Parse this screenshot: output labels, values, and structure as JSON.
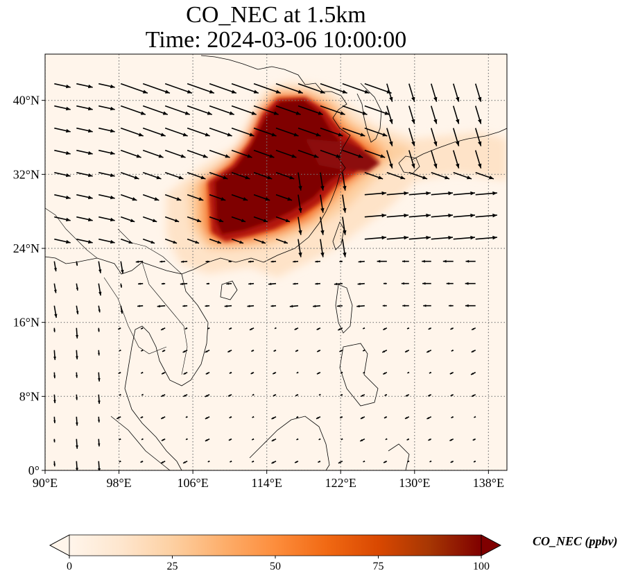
{
  "title": {
    "line1": "CO_NEC at 1.5km",
    "line2": "Time: 2024-03-06 10:00:00"
  },
  "map": {
    "lon_range": [
      90,
      140
    ],
    "lat_range": [
      0,
      45
    ],
    "lon_ticks": [
      {
        "value": 90,
        "label": "90°E"
      },
      {
        "value": 98,
        "label": "98°E"
      },
      {
        "value": 106,
        "label": "106°E"
      },
      {
        "value": 114,
        "label": "114°E"
      },
      {
        "value": 122,
        "label": "122°E"
      },
      {
        "value": 130,
        "label": "130°E"
      },
      {
        "value": 138,
        "label": "138°E"
      }
    ],
    "lat_ticks": [
      {
        "value": 0,
        "label": "0°"
      },
      {
        "value": 8,
        "label": "8°N"
      },
      {
        "value": 16,
        "label": "16°N"
      },
      {
        "value": 24,
        "label": "24°N"
      },
      {
        "value": 32,
        "label": "32°N"
      },
      {
        "value": 40,
        "label": "40°N"
      }
    ],
    "gridlines": true,
    "background_color": "#fff5eb",
    "plume_colors": [
      "#fdd0a2",
      "#fdae6b",
      "#f16913",
      "#d94801",
      "#a50f15",
      "#7f0000"
    ]
  },
  "colorbar": {
    "label": "CO_NEC (ppbv)",
    "ticks": [
      {
        "value": 0,
        "label": "0"
      },
      {
        "value": 25,
        "label": "25"
      },
      {
        "value": 50,
        "label": "50"
      },
      {
        "value": 75,
        "label": "75"
      },
      {
        "value": 100,
        "label": "100"
      }
    ],
    "range": [
      0,
      100
    ],
    "extend": "both",
    "colormap": [
      "#fff5eb",
      "#fee6ce",
      "#fdd0a2",
      "#fdae6b",
      "#fd8d3c",
      "#f16913",
      "#d94801",
      "#a63603",
      "#7f0000"
    ]
  }
}
